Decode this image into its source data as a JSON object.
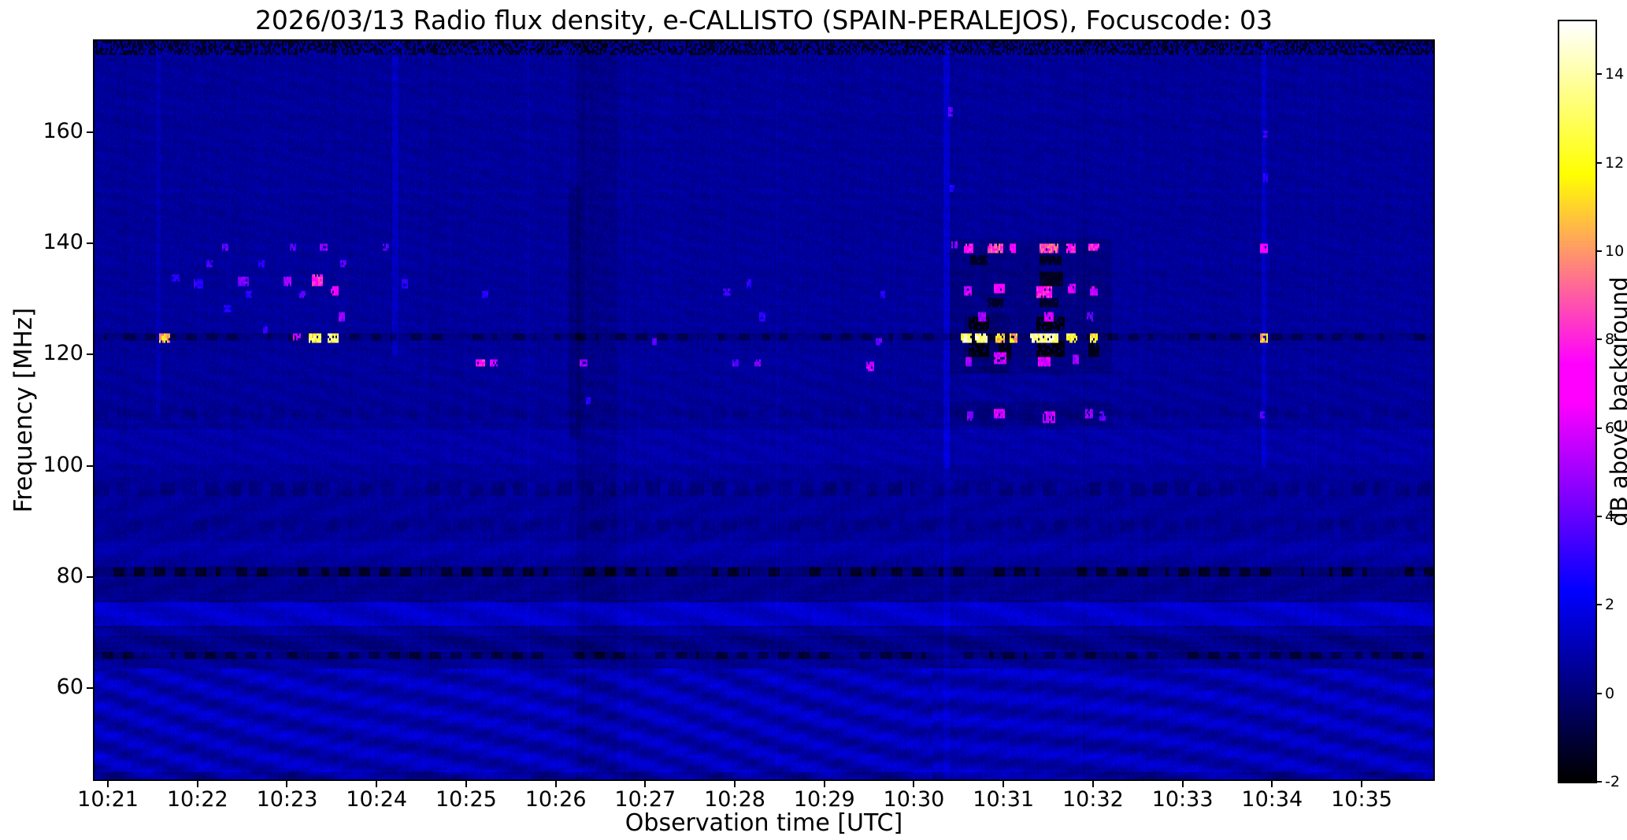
{
  "chart_data": {
    "type": "heatmap",
    "title": "2026/03/13  Radio flux density, e-CALLISTO (SPAIN-PERALEJOS), Focuscode: 03",
    "date": "2026/03/13",
    "instrument": "e-CALLISTO",
    "station": "SPAIN-PERALEJOS",
    "focuscode": "03",
    "xlabel": "Observation time [UTC]",
    "ylabel": "Frequency [MHz]",
    "colorbar_label": "dB above background",
    "colormap": "gnuplot2",
    "value_range": [
      -2,
      15.2
    ],
    "x_range_minutes": [
      -0.15,
      14.8
    ],
    "y_range_mhz": [
      43.5,
      176.5
    ],
    "background_db": 0.6,
    "x_ticks": [
      {
        "label": "10:21",
        "t": 0
      },
      {
        "label": "10:22",
        "t": 1
      },
      {
        "label": "10:23",
        "t": 2
      },
      {
        "label": "10:24",
        "t": 3
      },
      {
        "label": "10:25",
        "t": 4
      },
      {
        "label": "10:26",
        "t": 5
      },
      {
        "label": "10:27",
        "t": 6
      },
      {
        "label": "10:28",
        "t": 7
      },
      {
        "label": "10:29",
        "t": 8
      },
      {
        "label": "10:30",
        "t": 9
      },
      {
        "label": "10:31",
        "t": 10
      },
      {
        "label": "10:32",
        "t": 11
      },
      {
        "label": "10:33",
        "t": 12
      },
      {
        "label": "10:34",
        "t": 13
      },
      {
        "label": "10:35",
        "t": 14
      }
    ],
    "y_ticks": [
      60,
      80,
      100,
      120,
      140,
      160
    ],
    "colorbar_ticks": [
      -2,
      0,
      2,
      4,
      6,
      8,
      10,
      12,
      14
    ],
    "bands": [
      {
        "f0": 174.3,
        "f1": 176.5,
        "dv": -0.5,
        "style": "speckle"
      },
      {
        "f0": 123.0,
        "f1": 124.0,
        "dv": -0.9,
        "style": "dashdark"
      },
      {
        "f0": 80.5,
        "f1": 81.6,
        "dv": -1.4,
        "style": "dashdark"
      },
      {
        "f0": 65.7,
        "f1": 66.6,
        "dv": -1.1,
        "style": "dashdark"
      },
      {
        "f0": 94.8,
        "f1": 97.2,
        "dv": -0.45,
        "style": "dash"
      },
      {
        "f0": 88.5,
        "f1": 90.2,
        "dv": -0.25,
        "style": "dash"
      },
      {
        "f0": 108.5,
        "f1": 110.5,
        "dv": -0.2,
        "style": "dash"
      },
      {
        "f0": 71.6,
        "f1": 75.2,
        "dv": 0.8,
        "style": "solid"
      },
      {
        "f0": 101.0,
        "f1": 106.5,
        "dv": 0.25,
        "style": "solid"
      },
      {
        "f0": 45.0,
        "f1": 63.5,
        "dv": 0.45,
        "style": "solid"
      },
      {
        "f0": 84.5,
        "f1": 86.5,
        "dv": 0.25,
        "style": "solid"
      },
      {
        "f0": 67.2,
        "f1": 69.5,
        "dv": -0.3,
        "style": "solid"
      },
      {
        "f0": 76.0,
        "f1": 79.5,
        "dv": -0.25,
        "style": "solid"
      }
    ],
    "vertical_streaks": [
      {
        "t": 5.45,
        "dt": 0.45,
        "f0": 43.5,
        "f1": 176.5,
        "dv": -0.3
      },
      {
        "t": 5.2,
        "dt": 0.12,
        "f0": 105,
        "f1": 150,
        "dv": -0.45
      },
      {
        "t": 9.35,
        "dt": 0.05,
        "f0": 100,
        "f1": 176.5,
        "dv": 0.9
      },
      {
        "t": 9.35,
        "dt": 0.05,
        "f0": 43.5,
        "f1": 100,
        "dv": 0.35
      },
      {
        "t": 12.9,
        "dt": 0.05,
        "f0": 100,
        "f1": 176.5,
        "dv": 0.7
      },
      {
        "t": 3.2,
        "dt": 0.04,
        "f0": 120,
        "f1": 176.5,
        "dv": 0.6
      },
      {
        "t": 0.55,
        "dt": 0.03,
        "f0": 110,
        "f1": 176.5,
        "dv": 0.4
      },
      {
        "t": 10.3,
        "dt": 1.8,
        "f0": 117,
        "f1": 141,
        "dv": -0.4
      },
      {
        "t": 10.3,
        "dt": 1.8,
        "f0": 107.5,
        "f1": 111.5,
        "dv": -0.35
      },
      {
        "t": 9.8,
        "dt": 0.5,
        "f0": 117,
        "f1": 127,
        "dv": -0.3
      }
    ],
    "burst_fields": [
      "t_minutes_after_10:21",
      "frequency_mhz",
      "duration_min",
      "bandwidth_mhz",
      "db_above_background"
    ],
    "bursts": [
      [
        9.72,
        121.2,
        0.22,
        2.6,
        -1.9
      ],
      [
        9.72,
        125.6,
        0.22,
        2.2,
        -1.9
      ],
      [
        10.0,
        121.0,
        0.12,
        2.6,
        -1.8
      ],
      [
        10.52,
        121.2,
        0.3,
        2.6,
        -1.9
      ],
      [
        10.52,
        125.6,
        0.3,
        2.2,
        -1.9
      ],
      [
        10.52,
        133.8,
        0.25,
        1.8,
        -1.6
      ],
      [
        9.72,
        137.2,
        0.18,
        1.6,
        -1.5
      ],
      [
        10.52,
        137.2,
        0.22,
        1.6,
        -1.5
      ],
      [
        11.0,
        121.0,
        0.1,
        2.4,
        -1.7
      ],
      [
        9.9,
        129.5,
        0.15,
        1.6,
        -1.4
      ],
      [
        10.5,
        129.5,
        0.2,
        1.6,
        -1.4
      ],
      [
        0.62,
        123.3,
        0.1,
        1.3,
        11
      ],
      [
        0.75,
        134,
        0.06,
        1.0,
        3
      ],
      [
        1.0,
        133,
        0.08,
        1.0,
        3
      ],
      [
        1.12,
        136.5,
        0.06,
        1.0,
        3.5
      ],
      [
        1.3,
        139.5,
        0.05,
        1.0,
        4
      ],
      [
        1.33,
        128.5,
        0.07,
        1.0,
        3
      ],
      [
        1.5,
        133.5,
        0.1,
        1.4,
        4.5
      ],
      [
        1.56,
        131,
        0.06,
        1.0,
        3
      ],
      [
        1.7,
        136.5,
        0.05,
        1.0,
        3
      ],
      [
        1.75,
        124.5,
        0.04,
        0.9,
        3
      ],
      [
        2.0,
        133.5,
        0.07,
        1.2,
        5
      ],
      [
        2.05,
        139.5,
        0.05,
        1.0,
        4
      ],
      [
        2.1,
        123.3,
        0.06,
        1.1,
        6
      ],
      [
        2.16,
        131,
        0.06,
        1.0,
        4
      ],
      [
        2.3,
        123.3,
        0.12,
        1.3,
        13
      ],
      [
        2.33,
        133.5,
        0.1,
        1.5,
        8
      ],
      [
        2.4,
        139.5,
        0.07,
        1.1,
        5
      ],
      [
        2.5,
        123.3,
        0.1,
        1.3,
        13.5
      ],
      [
        2.52,
        131.5,
        0.08,
        1.2,
        7
      ],
      [
        2.6,
        127,
        0.06,
        1.0,
        5
      ],
      [
        2.62,
        136.5,
        0.06,
        1.0,
        4
      ],
      [
        3.1,
        139.5,
        0.05,
        1.0,
        4
      ],
      [
        3.3,
        133,
        0.05,
        1.0,
        3
      ],
      [
        4.15,
        118.7,
        0.08,
        1.2,
        8
      ],
      [
        4.3,
        118.7,
        0.06,
        1.0,
        6
      ],
      [
        4.2,
        131,
        0.05,
        1.0,
        3
      ],
      [
        5.3,
        118.7,
        0.06,
        1.0,
        5
      ],
      [
        5.35,
        112,
        0.04,
        0.9,
        3
      ],
      [
        6.1,
        122.5,
        0.04,
        0.9,
        4
      ],
      [
        6.9,
        131.5,
        0.06,
        1.0,
        3.5
      ],
      [
        7.0,
        118.7,
        0.05,
        1.0,
        4
      ],
      [
        7.15,
        133,
        0.05,
        1.0,
        3
      ],
      [
        7.25,
        118.7,
        0.05,
        1.0,
        4.5
      ],
      [
        7.3,
        127,
        0.04,
        0.9,
        3
      ],
      [
        8.5,
        118,
        0.06,
        1.1,
        6
      ],
      [
        8.6,
        122.5,
        0.05,
        0.9,
        4
      ],
      [
        8.65,
        131,
        0.04,
        0.9,
        3
      ],
      [
        9.4,
        164,
        0.04,
        1.0,
        4
      ],
      [
        9.42,
        150,
        0.03,
        0.9,
        3
      ],
      [
        9.45,
        140,
        0.05,
        1.0,
        5
      ],
      [
        9.58,
        123.3,
        0.1,
        1.4,
        14
      ],
      [
        9.6,
        139.3,
        0.08,
        1.2,
        8
      ],
      [
        9.6,
        131.5,
        0.07,
        1.2,
        6
      ],
      [
        9.6,
        119,
        0.06,
        1.2,
        5
      ],
      [
        9.62,
        109,
        0.06,
        1.3,
        5
      ],
      [
        9.75,
        123.3,
        0.12,
        1.4,
        14.5
      ],
      [
        9.75,
        127,
        0.06,
        1.0,
        5
      ],
      [
        9.9,
        139.3,
        0.15,
        1.3,
        9
      ],
      [
        9.95,
        123.3,
        0.08,
        1.3,
        12
      ],
      [
        9.95,
        132,
        0.1,
        1.4,
        7
      ],
      [
        9.95,
        119.5,
        0.12,
        1.5,
        6
      ],
      [
        9.95,
        109.5,
        0.1,
        1.5,
        6
      ],
      [
        10.1,
        123.3,
        0.07,
        1.3,
        11
      ],
      [
        10.1,
        139.3,
        0.06,
        1.1,
        7
      ],
      [
        10.45,
        123.3,
        0.3,
        1.4,
        14.5
      ],
      [
        10.45,
        131.5,
        0.15,
        1.4,
        8
      ],
      [
        10.45,
        119,
        0.12,
        1.5,
        6
      ],
      [
        10.5,
        139.3,
        0.2,
        1.3,
        9
      ],
      [
        10.5,
        127,
        0.1,
        1.1,
        6
      ],
      [
        10.5,
        109,
        0.12,
        1.5,
        6
      ],
      [
        10.75,
        123.3,
        0.1,
        1.3,
        13
      ],
      [
        10.75,
        139.3,
        0.08,
        1.2,
        8
      ],
      [
        10.75,
        132,
        0.07,
        1.2,
        6
      ],
      [
        10.8,
        119.5,
        0.06,
        1.2,
        5
      ],
      [
        10.95,
        127,
        0.05,
        1.0,
        4
      ],
      [
        10.95,
        109.5,
        0.06,
        1.2,
        5
      ],
      [
        11.0,
        123.3,
        0.08,
        1.3,
        12
      ],
      [
        11.0,
        139.5,
        0.1,
        1.2,
        8
      ],
      [
        11.0,
        131.5,
        0.06,
        1.2,
        6
      ],
      [
        11.1,
        109,
        0.05,
        1.2,
        4
      ],
      [
        12.9,
        123.3,
        0.08,
        1.3,
        11
      ],
      [
        12.9,
        139.3,
        0.06,
        1.2,
        7
      ],
      [
        12.92,
        152,
        0.04,
        1.0,
        3
      ],
      [
        12.92,
        160,
        0.04,
        1.0,
        3.5
      ],
      [
        12.88,
        109.5,
        0.04,
        1.0,
        4
      ]
    ]
  }
}
